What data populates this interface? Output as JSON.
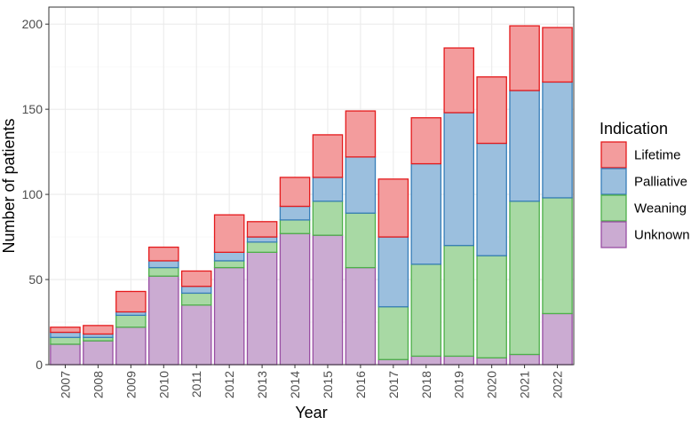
{
  "chart_data": {
    "type": "bar",
    "stacked": true,
    "title": "",
    "xlabel": "Year",
    "ylabel": "Number of patients",
    "ylim": [
      0,
      210
    ],
    "yticks": [
      0,
      50,
      100,
      150,
      200
    ],
    "grid": true,
    "legend_position": "right",
    "legend_title": "Indication",
    "categories": [
      "2007",
      "2008",
      "2009",
      "2010",
      "2011",
      "2012",
      "2013",
      "2014",
      "2015",
      "2016",
      "2017",
      "2018",
      "2019",
      "2020",
      "2021",
      "2022"
    ],
    "series": [
      {
        "name": "Unknown",
        "fill": "#CBABD2",
        "stroke": "#984EA3",
        "values": [
          12,
          14,
          22,
          52,
          35,
          57,
          66,
          77,
          76,
          57,
          3,
          5,
          5,
          4,
          6,
          30
        ]
      },
      {
        "name": "Weaning",
        "fill": "#A8D9A4",
        "stroke": "#4DAF4A",
        "values": [
          4,
          2,
          7,
          5,
          7,
          4,
          6,
          8,
          20,
          32,
          31,
          54,
          65,
          60,
          90,
          68
        ]
      },
      {
        "name": "Palliative",
        "fill": "#9BBFDE",
        "stroke": "#377EB8",
        "values": [
          3,
          2,
          2,
          4,
          4,
          5,
          3,
          8,
          14,
          33,
          41,
          59,
          78,
          66,
          65,
          68
        ]
      },
      {
        "name": "Lifetime",
        "fill": "#F39C9D",
        "stroke": "#E41A1C",
        "values": [
          3,
          5,
          12,
          8,
          9,
          22,
          9,
          17,
          25,
          27,
          34,
          27,
          38,
          39,
          38,
          32
        ]
      }
    ],
    "legend_order": [
      "Lifetime",
      "Palliative",
      "Weaning",
      "Unknown"
    ]
  }
}
